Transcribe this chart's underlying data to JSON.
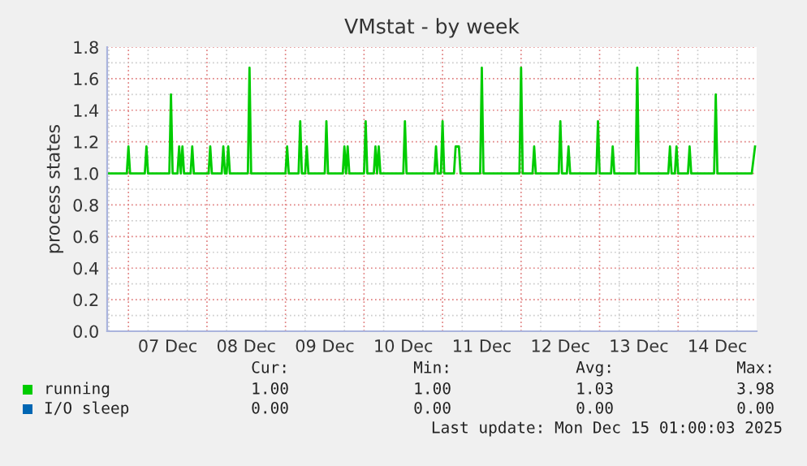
{
  "chart_data": {
    "type": "line",
    "title": "VMstat - by week",
    "ylabel": "process states",
    "xlim": [
      "2025-12-06T17:30",
      "2025-12-15T00:00"
    ],
    "xticks": [
      {
        "value": "2025-12-07T00:00",
        "label": null
      },
      {
        "value": "2025-12-07T12:00",
        "label": "07 Dec"
      },
      {
        "value": "2025-12-08T00:00",
        "label": null
      },
      {
        "value": "2025-12-08T12:00",
        "label": "08 Dec"
      },
      {
        "value": "2025-12-09T00:00",
        "label": null
      },
      {
        "value": "2025-12-09T12:00",
        "label": "09 Dec"
      },
      {
        "value": "2025-12-10T00:00",
        "label": null
      },
      {
        "value": "2025-12-10T12:00",
        "label": "10 Dec"
      },
      {
        "value": "2025-12-11T00:00",
        "label": null
      },
      {
        "value": "2025-12-11T12:00",
        "label": "11 Dec"
      },
      {
        "value": "2025-12-12T00:00",
        "label": null
      },
      {
        "value": "2025-12-12T12:00",
        "label": "12 Dec"
      },
      {
        "value": "2025-12-13T00:00",
        "label": null
      },
      {
        "value": "2025-12-13T12:00",
        "label": "13 Dec"
      },
      {
        "value": "2025-12-14T00:00",
        "label": null
      },
      {
        "value": "2025-12-14T12:00",
        "label": "14 Dec"
      }
    ],
    "ylim": [
      0,
      1.8
    ],
    "yticks": [
      {
        "value": 0,
        "label": "0.0"
      },
      {
        "value": 0.2,
        "label": "0.2"
      },
      {
        "value": 0.4,
        "label": "0.4"
      },
      {
        "value": 0.6,
        "label": "0.6"
      },
      {
        "value": 0.8,
        "label": "0.8"
      },
      {
        "value": 1.0,
        "label": "1.0"
      },
      {
        "value": 1.2,
        "label": "1.2"
      },
      {
        "value": 1.4,
        "label": "1.4"
      },
      {
        "value": 1.6,
        "label": "1.6"
      },
      {
        "value": 1.8,
        "label": "1.8"
      }
    ],
    "grid": true,
    "legend": "bottom",
    "series": [
      {
        "name": "running",
        "color": "#00cc00",
        "x": [
          "2025-12-06T17:30",
          "2025-12-06T23:30",
          "2025-12-07T00:00",
          "2025-12-07T00:30",
          "2025-12-07T05:00",
          "2025-12-07T05:30",
          "2025-12-07T06:00",
          "2025-12-07T12:30",
          "2025-12-07T13:00",
          "2025-12-07T13:30",
          "2025-12-07T15:00",
          "2025-12-07T15:30",
          "2025-12-07T16:00",
          "2025-12-07T16:30",
          "2025-12-07T17:00",
          "2025-12-07T19:00",
          "2025-12-07T19:30",
          "2025-12-07T20:00",
          "2025-12-08T00:30",
          "2025-12-08T01:00",
          "2025-12-08T01:30",
          "2025-12-08T04:30",
          "2025-12-08T05:00",
          "2025-12-08T05:30",
          "2025-12-08T06:00",
          "2025-12-08T06:30",
          "2025-12-08T07:00",
          "2025-12-08T12:30",
          "2025-12-08T13:00",
          "2025-12-08T13:30",
          "2025-12-09T00:00",
          "2025-12-09T00:30",
          "2025-12-09T01:00",
          "2025-12-09T04:00",
          "2025-12-09T04:30",
          "2025-12-09T05:00",
          "2025-12-09T06:00",
          "2025-12-09T06:30",
          "2025-12-09T07:00",
          "2025-12-09T12:00",
          "2025-12-09T12:30",
          "2025-12-09T13:00",
          "2025-12-09T17:30",
          "2025-12-09T18:00",
          "2025-12-09T18:30",
          "2025-12-09T19:00",
          "2025-12-09T19:30",
          "2025-12-10T00:00",
          "2025-12-10T00:30",
          "2025-12-10T01:00",
          "2025-12-10T03:00",
          "2025-12-10T03:30",
          "2025-12-10T04:00",
          "2025-12-10T04:30",
          "2025-12-10T05:00",
          "2025-12-10T12:00",
          "2025-12-10T12:30",
          "2025-12-10T13:00",
          "2025-12-10T21:30",
          "2025-12-10T22:00",
          "2025-12-10T22:30",
          "2025-12-10T23:30",
          "2025-12-11T00:00",
          "2025-12-11T00:30",
          "2025-12-11T03:30",
          "2025-12-11T04:00",
          "2025-12-11T05:00",
          "2025-12-11T05:30",
          "2025-12-11T11:30",
          "2025-12-11T12:00",
          "2025-12-11T12:30",
          "2025-12-11T23:30",
          "2025-12-12T00:00",
          "2025-12-12T00:30",
          "2025-12-12T03:30",
          "2025-12-12T04:00",
          "2025-12-12T04:30",
          "2025-12-12T11:30",
          "2025-12-12T12:00",
          "2025-12-12T12:30",
          "2025-12-12T14:00",
          "2025-12-12T14:30",
          "2025-12-12T15:00",
          "2025-12-12T23:00",
          "2025-12-12T23:30",
          "2025-12-13T00:00",
          "2025-12-13T03:30",
          "2025-12-13T04:00",
          "2025-12-13T04:30",
          "2025-12-13T11:00",
          "2025-12-13T11:30",
          "2025-12-13T12:00",
          "2025-12-13T21:00",
          "2025-12-13T21:30",
          "2025-12-13T22:00",
          "2025-12-13T23:00",
          "2025-12-13T23:30",
          "2025-12-14T00:00",
          "2025-12-14T03:00",
          "2025-12-14T03:30",
          "2025-12-14T04:00",
          "2025-12-14T11:00",
          "2025-12-14T11:30",
          "2025-12-14T12:00",
          "2025-12-14T22:30",
          "2025-12-14T23:30"
        ],
        "values": [
          1,
          1,
          1.17,
          1,
          1,
          1.17,
          1,
          1,
          1.5,
          1,
          1,
          1.17,
          1,
          1.17,
          1,
          1,
          1.17,
          1,
          1,
          1.17,
          1,
          1,
          1.17,
          1,
          1,
          1.17,
          1,
          1,
          1.67,
          1,
          1,
          1.17,
          1,
          1,
          1.33,
          1,
          1,
          1.17,
          1,
          1,
          1.33,
          1,
          1,
          1.17,
          1,
          1.17,
          1,
          1,
          1.33,
          1,
          1,
          1.17,
          1,
          1.17,
          1,
          1,
          1.33,
          1,
          1,
          1.17,
          1,
          1,
          1.33,
          1,
          1,
          1.17,
          1.17,
          1,
          1,
          1.67,
          1,
          1,
          1.67,
          1,
          1,
          1.17,
          1,
          1,
          1.33,
          1,
          1,
          1.17,
          1,
          1,
          1.33,
          1,
          1,
          1.17,
          1,
          1,
          1.67,
          1,
          1,
          1.17,
          1,
          1,
          1.17,
          1,
          1,
          1.17,
          1,
          1,
          1.5,
          1,
          1,
          1.17
        ]
      },
      {
        "name": "I/O sleep",
        "color": "#0066b3"
      }
    ],
    "annotations": [
      "Cur:",
      "Min:",
      "Avg:",
      "Max:",
      "1.00",
      "1.00",
      "1.03",
      "3.98",
      "0.00",
      "0.00",
      "0.00",
      "0.00",
      "Last update: Mon Dec 15 01:00:03 2025"
    ]
  }
}
